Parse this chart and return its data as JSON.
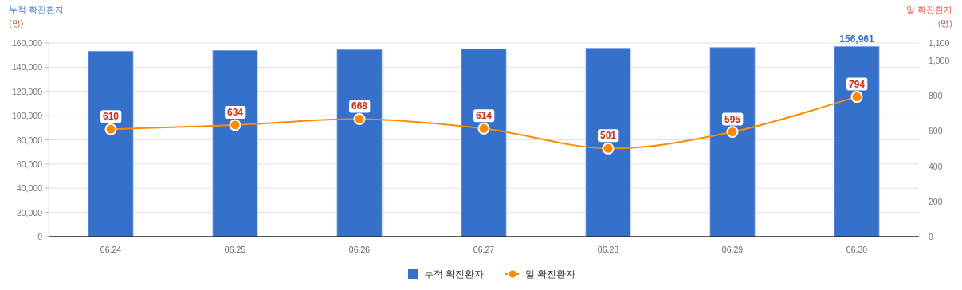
{
  "chart_data": {
    "type": "bar",
    "ylabel": "누적 확진환자\n(명)",
    "y2label": "일 확진환자\n(명)",
    "categories": [
      "06.24",
      "06.25",
      "06.26",
      "06.27",
      "06.28",
      "06.29",
      "06.30"
    ],
    "series": [
      {
        "name": "누적 확진환자",
        "color": "#3570cb",
        "values": [
          153200,
          153800,
          154500,
          155100,
          155600,
          156200,
          156961
        ],
        "value_labels": [
          null,
          null,
          null,
          null,
          null,
          null,
          "156,961"
        ]
      },
      {
        "name": "일 확진환자",
        "type": "line",
        "axis": "y2",
        "color": "#ff8a00",
        "marker": "circle",
        "values": [
          610,
          634,
          668,
          614,
          501,
          595,
          794
        ],
        "value_labels": [
          "610",
          "634",
          "668",
          "614",
          "501",
          "595",
          "794"
        ]
      }
    ],
    "ylim": [
      0,
      160000
    ],
    "yticks": [
      {
        "value": 0,
        "label": "0"
      },
      {
        "value": 20000,
        "label": "20,000"
      },
      {
        "value": 40000,
        "label": "40,000"
      },
      {
        "value": 60000,
        "label": "60,000"
      },
      {
        "value": 80000,
        "label": "80,000"
      },
      {
        "value": 100000,
        "label": "100,000"
      },
      {
        "value": 120000,
        "label": "120,000"
      },
      {
        "value": 140000,
        "label": "140,000"
      },
      {
        "value": 160000,
        "label": "160,000"
      }
    ],
    "y2lim": [
      0,
      1100
    ],
    "y2ticks": [
      0,
      200,
      400,
      600,
      800,
      {
        "value": 1000,
        "label": "1,000"
      },
      {
        "value": 1100,
        "label": "1,100"
      }
    ],
    "grid": "y",
    "legend": "bottom"
  }
}
